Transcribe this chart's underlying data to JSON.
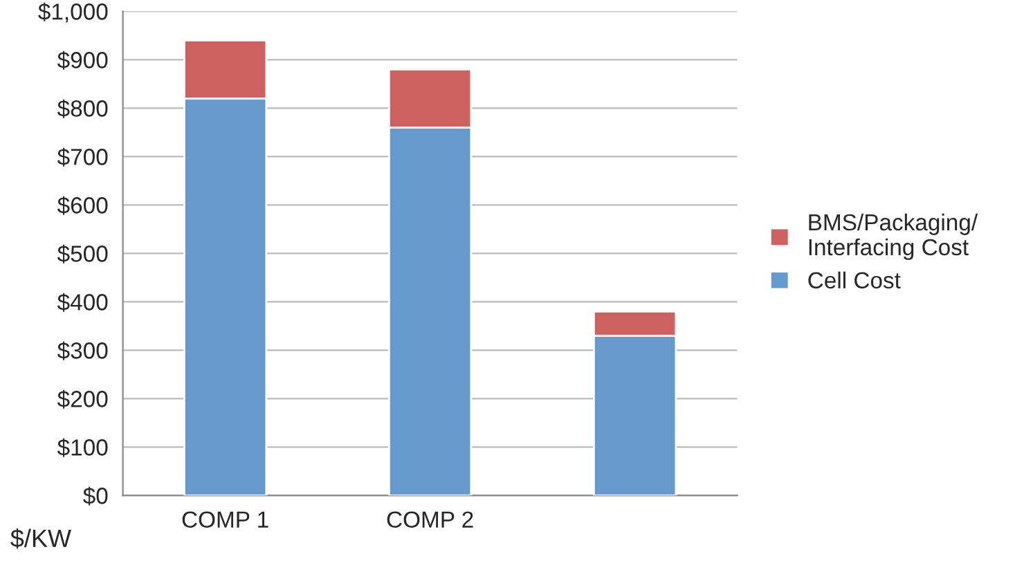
{
  "chart_data": {
    "type": "bar",
    "stacked": true,
    "categories": [
      "COMP 1",
      "COMP 2",
      null
    ],
    "series": [
      {
        "name": "Cell Cost",
        "color": "#6699cc",
        "values": [
          820,
          760,
          330
        ]
      },
      {
        "name": "BMS/Packaging/\nInterfacing Cost",
        "color": "#cc6160",
        "values": [
          120,
          120,
          50
        ]
      }
    ],
    "ylim": [
      0,
      1000
    ],
    "yticks": [
      {
        "value": 0,
        "label": "$0"
      },
      {
        "value": 100,
        "label": "$100"
      },
      {
        "value": 200,
        "label": "$200"
      },
      {
        "value": 300,
        "label": "$300"
      },
      {
        "value": 400,
        "label": "$400"
      },
      {
        "value": 500,
        "label": "$500"
      },
      {
        "value": 600,
        "label": "$600"
      },
      {
        "value": 700,
        "label": "$700"
      },
      {
        "value": 800,
        "label": "$800"
      },
      {
        "value": 900,
        "label": "$900"
      },
      {
        "value": 1000,
        "label": "$1,000"
      }
    ],
    "grid": "y",
    "legend": "right",
    "annotations": [
      "$/KW"
    ]
  }
}
